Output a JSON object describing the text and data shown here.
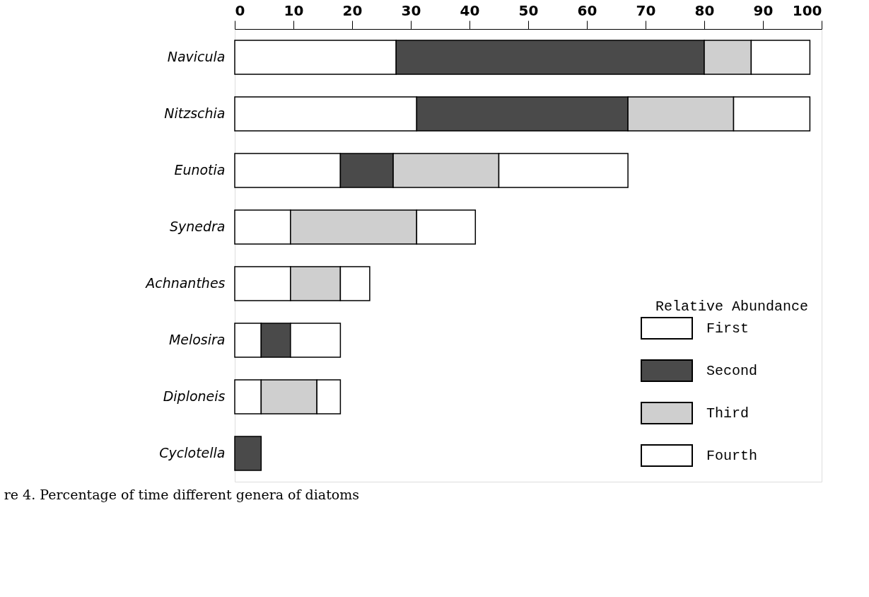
{
  "chart_data": {
    "type": "bar",
    "orientation": "horizontal",
    "stacked": true,
    "categories": [
      "Navicula",
      "Nitzschia",
      "Eunotia",
      "Synedra",
      "Achnanthes",
      "Melosira",
      "Diploneis",
      "Cyclotella"
    ],
    "series": [
      {
        "name": "First",
        "color": "#ffffff",
        "values": [
          27.5,
          31,
          18,
          9.5,
          9.5,
          4.5,
          4.5,
          null
        ]
      },
      {
        "name": "Second",
        "color": "#4a4a4a",
        "values": [
          52.5,
          36,
          9,
          null,
          null,
          5,
          null,
          4.5
        ]
      },
      {
        "name": "Third",
        "color": "#cfcfcf",
        "values": [
          8,
          18,
          18,
          21.5,
          8.5,
          null,
          9.5,
          null
        ]
      },
      {
        "name": "Fourth",
        "color": "#ffffff",
        "values": [
          10,
          13,
          22,
          10,
          5,
          8.5,
          4,
          null
        ]
      }
    ],
    "xlim": [
      0,
      100
    ],
    "xticks": [
      0,
      10,
      20,
      30,
      40,
      50,
      60,
      70,
      80,
      90,
      100
    ],
    "legend_title": "Relative Abundance",
    "legend": "bottom right",
    "grid": false,
    "annotations": [
      "re 4. Percentage of time different genera of diatoms"
    ]
  }
}
